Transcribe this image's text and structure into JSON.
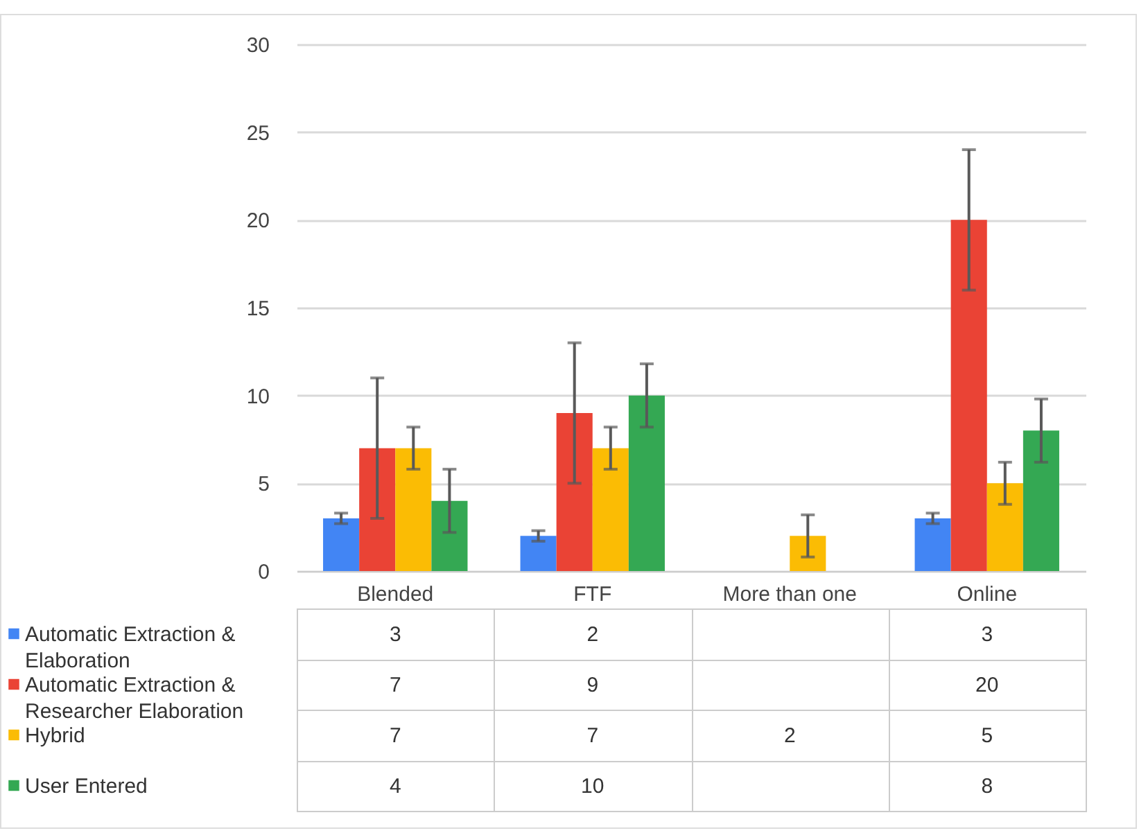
{
  "chart_data": {
    "type": "bar",
    "categories": [
      "Blended",
      "FTF",
      "More than one",
      "Online"
    ],
    "series": [
      {
        "name": "Automatic Extraction & Elaboration",
        "color": "#4285f4",
        "values": [
          3,
          2,
          null,
          3
        ],
        "errors": [
          0.3,
          0.3,
          null,
          0.3
        ]
      },
      {
        "name": "Automatic Extraction & Researcher Elaboration",
        "color": "#ea4335",
        "values": [
          7,
          9,
          null,
          20
        ],
        "errors": [
          4,
          4,
          null,
          4
        ]
      },
      {
        "name": "Hybrid",
        "color": "#fbbc04",
        "values": [
          7,
          7,
          2,
          5
        ],
        "errors": [
          1.2,
          1.2,
          1.2,
          1.2
        ]
      },
      {
        "name": "User Entered",
        "color": "#34a853",
        "values": [
          4,
          10,
          null,
          8
        ],
        "errors": [
          1.8,
          1.8,
          null,
          1.8
        ]
      }
    ],
    "ylim": [
      0,
      30
    ],
    "yticks": [
      0,
      5,
      10,
      15,
      20,
      25,
      30
    ],
    "grid": "y",
    "data_labels": true,
    "legend": "bottom left"
  }
}
